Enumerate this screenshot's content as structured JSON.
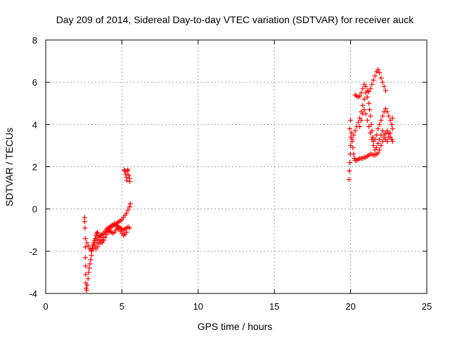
{
  "chart_data": {
    "type": "scatter",
    "title": "Day 209 of 2014, Sidereal Day-to-day VTEC variation (SDTVAR) for receiver auck",
    "xlabel": "GPS time / hours",
    "ylabel": "SDTVAR / TECUs",
    "xlim": [
      0,
      25
    ],
    "ylim": [
      -4,
      8
    ],
    "xticks": [
      0,
      5,
      10,
      15,
      20,
      25
    ],
    "yticks": [
      -4,
      -2,
      0,
      2,
      4,
      6,
      8
    ],
    "grid": true,
    "marker": "plus",
    "color": "#ff0000",
    "series": [
      {
        "name": "",
        "points": [
          [
            2.55,
            -0.4
          ],
          [
            2.56,
            -0.6
          ],
          [
            2.58,
            -0.9
          ],
          [
            2.6,
            -1.4
          ],
          [
            2.6,
            -1.8
          ],
          [
            2.6,
            -2.3
          ],
          [
            2.62,
            -2.7
          ],
          [
            2.62,
            -3.1
          ],
          [
            2.63,
            -3.5
          ],
          [
            2.65,
            -3.75
          ],
          [
            2.68,
            -3.85
          ],
          [
            2.72,
            -3.6
          ],
          [
            2.78,
            -3.3
          ],
          [
            2.82,
            -3.0
          ],
          [
            2.86,
            -2.8
          ],
          [
            2.9,
            -2.6
          ],
          [
            2.95,
            -2.4
          ],
          [
            3.0,
            -2.2
          ],
          [
            3.02,
            -2.0
          ],
          [
            3.05,
            -1.85
          ],
          [
            3.1,
            -1.7
          ],
          [
            3.15,
            -1.6
          ],
          [
            3.2,
            -1.5
          ],
          [
            3.25,
            -1.4
          ],
          [
            3.3,
            -1.25
          ],
          [
            3.35,
            -1.15
          ],
          [
            3.4,
            -1.1
          ],
          [
            3.5,
            -1.3
          ],
          [
            3.6,
            -1.5
          ],
          [
            3.7,
            -1.6
          ],
          [
            3.8,
            -1.5
          ],
          [
            3.9,
            -1.35
          ],
          [
            4.0,
            -1.2
          ],
          [
            4.1,
            -1.05
          ],
          [
            4.2,
            -0.95
          ],
          [
            4.3,
            -0.85
          ],
          [
            4.4,
            -0.8
          ],
          [
            4.5,
            -0.75
          ],
          [
            4.6,
            -0.7
          ],
          [
            4.7,
            -0.65
          ],
          [
            4.8,
            -0.6
          ],
          [
            4.9,
            -0.55
          ],
          [
            5.0,
            -0.5
          ],
          [
            5.1,
            -0.4
          ],
          [
            5.2,
            -0.3
          ],
          [
            5.3,
            -0.2
          ],
          [
            5.4,
            -0.05
          ],
          [
            5.5,
            0.1
          ],
          [
            5.55,
            0.25
          ],
          [
            2.7,
            -1.6
          ],
          [
            2.8,
            -1.75
          ],
          [
            2.9,
            -1.9
          ],
          [
            3.0,
            -1.95
          ],
          [
            3.1,
            -1.85
          ],
          [
            3.2,
            -1.75
          ],
          [
            3.3,
            -1.6
          ],
          [
            3.4,
            -1.45
          ],
          [
            3.5,
            -1.35
          ],
          [
            3.6,
            -1.25
          ],
          [
            3.7,
            -1.2
          ],
          [
            3.8,
            -1.15
          ],
          [
            3.9,
            -1.05
          ],
          [
            4.0,
            -0.95
          ],
          [
            4.1,
            -0.9
          ],
          [
            4.2,
            -0.85
          ],
          [
            4.3,
            -0.8
          ],
          [
            4.4,
            -0.75
          ],
          [
            4.5,
            -0.7
          ],
          [
            4.6,
            -0.75
          ],
          [
            4.7,
            -0.8
          ],
          [
            4.8,
            -0.85
          ],
          [
            4.9,
            -0.9
          ],
          [
            5.0,
            -0.95
          ],
          [
            5.1,
            -1.0
          ],
          [
            5.2,
            -0.95
          ],
          [
            5.3,
            -0.9
          ],
          [
            5.4,
            -0.85
          ],
          [
            5.5,
            -0.9
          ],
          [
            3.3,
            -1.9
          ],
          [
            3.4,
            -1.8
          ],
          [
            3.5,
            -1.65
          ],
          [
            3.6,
            -1.55
          ],
          [
            3.7,
            -1.45
          ],
          [
            3.8,
            -1.35
          ],
          [
            3.9,
            -1.2
          ],
          [
            4.0,
            -1.1
          ],
          [
            4.1,
            -1.0
          ],
          [
            4.2,
            -1.05
          ],
          [
            4.3,
            -1.1
          ],
          [
            4.4,
            -1.15
          ],
          [
            4.5,
            -1.1
          ],
          [
            4.6,
            -1.0
          ],
          [
            4.7,
            -0.9
          ],
          [
            4.8,
            -0.95
          ],
          [
            4.9,
            -1.05
          ],
          [
            5.0,
            -1.15
          ],
          [
            5.1,
            -1.25
          ],
          [
            5.2,
            -1.2
          ],
          [
            5.3,
            -1.1
          ],
          [
            5.15,
            1.85
          ],
          [
            5.2,
            1.8
          ],
          [
            5.25,
            1.65
          ],
          [
            5.3,
            1.5
          ],
          [
            5.32,
            1.35
          ],
          [
            5.35,
            1.8
          ],
          [
            5.4,
            1.85
          ],
          [
            5.45,
            1.6
          ],
          [
            5.5,
            1.45
          ],
          [
            5.52,
            1.3
          ],
          [
            19.9,
            1.4
          ],
          [
            19.92,
            1.8
          ],
          [
            19.95,
            2.2
          ],
          [
            19.98,
            2.6
          ],
          [
            20.0,
            3.0
          ],
          [
            20.02,
            3.4
          ],
          [
            19.95,
            3.8
          ],
          [
            20.0,
            4.2
          ],
          [
            20.05,
            3.6
          ],
          [
            20.1,
            3.2
          ],
          [
            20.15,
            2.9
          ],
          [
            20.2,
            2.6
          ],
          [
            20.25,
            2.4
          ],
          [
            20.3,
            2.3
          ],
          [
            20.4,
            2.3
          ],
          [
            20.5,
            2.35
          ],
          [
            20.6,
            2.4
          ],
          [
            20.7,
            2.4
          ],
          [
            20.8,
            2.4
          ],
          [
            20.9,
            2.45
          ],
          [
            21.0,
            2.45
          ],
          [
            21.1,
            2.5
          ],
          [
            21.2,
            2.55
          ],
          [
            21.3,
            2.6
          ],
          [
            21.4,
            2.6
          ],
          [
            21.5,
            2.55
          ],
          [
            21.6,
            2.55
          ],
          [
            21.7,
            2.6
          ],
          [
            21.8,
            2.65
          ],
          [
            21.9,
            2.8
          ],
          [
            22.0,
            3.0
          ],
          [
            22.1,
            3.2
          ],
          [
            22.2,
            3.4
          ],
          [
            22.3,
            3.6
          ],
          [
            22.4,
            3.7
          ],
          [
            22.5,
            3.55
          ],
          [
            22.6,
            3.4
          ],
          [
            22.7,
            3.3
          ],
          [
            22.75,
            3.2
          ],
          [
            20.1,
            3.3
          ],
          [
            20.2,
            3.5
          ],
          [
            20.3,
            3.7
          ],
          [
            20.4,
            3.9
          ],
          [
            20.5,
            4.1
          ],
          [
            20.6,
            4.3
          ],
          [
            20.7,
            4.6
          ],
          [
            20.8,
            4.9
          ],
          [
            20.9,
            5.2
          ],
          [
            21.0,
            5.5
          ],
          [
            21.1,
            5.3
          ],
          [
            21.2,
            5.0
          ],
          [
            21.25,
            4.7
          ],
          [
            21.3,
            4.4
          ],
          [
            21.35,
            4.0
          ],
          [
            21.4,
            3.7
          ],
          [
            21.45,
            3.4
          ],
          [
            21.5,
            3.2
          ],
          [
            21.6,
            3.3
          ],
          [
            21.7,
            3.5
          ],
          [
            21.8,
            3.8
          ],
          [
            21.9,
            4.0
          ],
          [
            22.0,
            4.2
          ],
          [
            22.1,
            4.4
          ],
          [
            22.2,
            4.6
          ],
          [
            22.3,
            4.75
          ],
          [
            22.4,
            4.6
          ],
          [
            22.5,
            4.4
          ],
          [
            22.6,
            4.2
          ],
          [
            22.7,
            4.0
          ],
          [
            22.75,
            3.8
          ],
          [
            20.3,
            5.4
          ],
          [
            20.4,
            5.35
          ],
          [
            20.5,
            5.3
          ],
          [
            20.6,
            5.35
          ],
          [
            20.7,
            5.5
          ],
          [
            20.8,
            5.7
          ],
          [
            20.9,
            5.9
          ],
          [
            21.0,
            5.8
          ],
          [
            21.1,
            5.6
          ],
          [
            21.2,
            5.55
          ],
          [
            21.3,
            5.7
          ],
          [
            21.4,
            5.9
          ],
          [
            21.5,
            6.1
          ],
          [
            21.6,
            6.3
          ],
          [
            21.7,
            6.5
          ],
          [
            21.8,
            6.6
          ],
          [
            21.9,
            6.45
          ],
          [
            22.0,
            6.2
          ],
          [
            22.1,
            6.0
          ],
          [
            22.2,
            5.8
          ],
          [
            22.3,
            5.6
          ],
          [
            20.6,
            3.9
          ],
          [
            20.7,
            4.2
          ],
          [
            20.8,
            4.5
          ],
          [
            20.9,
            4.7
          ],
          [
            21.0,
            4.5
          ],
          [
            21.1,
            4.2
          ],
          [
            21.2,
            3.9
          ],
          [
            21.3,
            3.6
          ],
          [
            21.4,
            3.3
          ],
          [
            21.5,
            3.0
          ],
          [
            21.6,
            2.8
          ],
          [
            21.7,
            2.9
          ],
          [
            21.8,
            3.1
          ],
          [
            21.9,
            3.3
          ],
          [
            22.0,
            3.5
          ],
          [
            22.1,
            3.7
          ],
          [
            22.2,
            3.5
          ],
          [
            22.3,
            3.3
          ],
          [
            22.4,
            3.2
          ],
          [
            22.5,
            3.4
          ],
          [
            22.6,
            3.6
          ],
          [
            22.7,
            4.0
          ],
          [
            22.75,
            4.3
          ]
        ]
      }
    ]
  }
}
